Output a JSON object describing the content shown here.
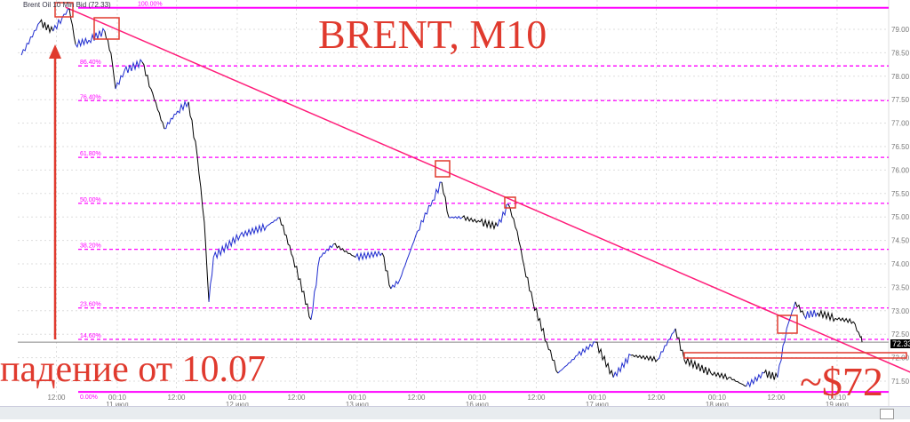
{
  "header": "Brent Oil 10 Min Bid (72.33)",
  "annotations": {
    "title": "BRENT, M10",
    "fall": "падение от 10.07",
    "target": "~$72"
  },
  "colors": {
    "price_up": "#1f2ccf",
    "price_down": "#000000",
    "fib": "#ff00ff",
    "trend": "#ff1d7a",
    "annotation": "#e03a2e"
  },
  "chart_data": {
    "type": "line",
    "title": "Brent Oil 10 Min Bid (72.33)",
    "last_price": "72.33",
    "ylim": [
      71.27,
      79.51
    ],
    "y_ticks": [
      "79.00",
      "78.50",
      "78.00",
      "77.50",
      "77.00",
      "76.50",
      "76.00",
      "75.50",
      "75.00",
      "74.50",
      "74.00",
      "73.50",
      "73.00",
      "72.50",
      "72.00",
      "71.50"
    ],
    "x_ticks": [
      {
        "t": "10.07 12:00",
        "l1": "12:00",
        "l2": ""
      },
      {
        "t": "11.07 00:10",
        "l1": "00:10",
        "l2": "11 июл"
      },
      {
        "t": "11.07 12:00",
        "l1": "12:00",
        "l2": ""
      },
      {
        "t": "12.07 00:10",
        "l1": "00:10",
        "l2": "12 июл"
      },
      {
        "t": "12.07 12:00",
        "l1": "12:00",
        "l2": ""
      },
      {
        "t": "13.07 00:10",
        "l1": "00:10",
        "l2": "13 июл"
      },
      {
        "t": "13.07 12:00",
        "l1": "12:00",
        "l2": ""
      },
      {
        "t": "16.07 00:10",
        "l1": "00:10",
        "l2": "16 июл"
      },
      {
        "t": "16.07 12:00",
        "l1": "12:00",
        "l2": ""
      },
      {
        "t": "17.07 00:10",
        "l1": "00:10",
        "l2": "17 июл"
      },
      {
        "t": "17.07 12:00",
        "l1": "12:00",
        "l2": ""
      },
      {
        "t": "18.07 00:10",
        "l1": "00:10",
        "l2": "18 июл"
      },
      {
        "t": "18.07 12:00",
        "l1": "12:00",
        "l2": ""
      },
      {
        "t": "19.07 00:10",
        "l1": "00:10",
        "l2": "19 июл"
      }
    ],
    "fib_levels": [
      {
        "label": "100.00%",
        "price": 79.46
      },
      {
        "label": "86.40%",
        "price": 78.22
      },
      {
        "label": "76.40%",
        "price": 77.48
      },
      {
        "label": "61.80%",
        "price": 76.27
      },
      {
        "label": "50.00%",
        "price": 75.29
      },
      {
        "label": "38.20%",
        "price": 74.31
      },
      {
        "label": "23.60%",
        "price": 73.06
      },
      {
        "label": "14.60%",
        "price": 72.39
      },
      {
        "label": "0.00%",
        "price": 71.27
      }
    ],
    "trendline": [
      {
        "t": "10.07 13:50",
        "p": 79.47
      },
      {
        "t": "19.07 12:50",
        "p": 71.77
      }
    ],
    "series": [
      {
        "points": [
          [
            "10.07 05:00",
            78.45
          ],
          [
            "10.07 08:40",
            79.15
          ],
          [
            "10.07 11:20",
            78.96
          ],
          [
            "10.07 13:10",
            79.25
          ],
          [
            "10.07 14:35",
            79.44
          ],
          [
            "10.07 15:50",
            78.68
          ],
          [
            "10.07 18:30",
            78.77
          ],
          [
            "10.07 21:40",
            78.96
          ],
          [
            "10.07 22:55",
            78.49
          ],
          [
            "10.07 23:50",
            77.73
          ],
          [
            "11.07 01:35",
            78.11
          ],
          [
            "11.07 05:10",
            78.3
          ],
          [
            "11.07 06:55",
            77.73
          ],
          [
            "11.07 09:35",
            76.88
          ],
          [
            "11.07 12:15",
            77.26
          ],
          [
            "11.07 14:25",
            77.45
          ],
          [
            "11.07 16:10",
            76.31
          ],
          [
            "11.07 17:35",
            74.89
          ],
          [
            "11.07 18:30",
            73.19
          ],
          [
            "11.07 19:25",
            74.14
          ],
          [
            "12.07 00:45",
            74.61
          ],
          [
            "12.07 06:00",
            74.8
          ],
          [
            "12.07 08:40",
            74.99
          ],
          [
            "12.07 11:20",
            74.14
          ],
          [
            "12.07 14:55",
            72.81
          ],
          [
            "12.07 16:40",
            74.14
          ],
          [
            "12.07 19:25",
            74.42
          ],
          [
            "12.07 23:50",
            74.14
          ],
          [
            "13.07 05:10",
            74.23
          ],
          [
            "13.07 06:55",
            73.47
          ],
          [
            "13.07 08:40",
            73.66
          ],
          [
            "13.07 12:15",
            74.7
          ],
          [
            "13.07 15:15",
            75.36
          ],
          [
            "13.07 17:05",
            75.74
          ],
          [
            "13.07 18:30",
            74.99
          ],
          [
            "13.07 21:10",
            74.99
          ],
          [
            "16.07 00:45",
            74.89
          ],
          [
            "16.07 04:15",
            74.8
          ],
          [
            "16.07 06:25",
            75.27
          ],
          [
            "16.07 08:10",
            74.7
          ],
          [
            "16.07 09:35",
            73.94
          ],
          [
            "16.07 11:20",
            73.19
          ],
          [
            "16.07 14:05",
            72.33
          ],
          [
            "16.07 16:20",
            71.67
          ],
          [
            "16.07 20:15",
            72.05
          ],
          [
            "16.07 23:50",
            72.33
          ],
          [
            "17.07 03:25",
            71.58
          ],
          [
            "17.07 06:55",
            72.05
          ],
          [
            "17.07 12:15",
            71.96
          ],
          [
            "17.07 15:50",
            72.62
          ],
          [
            "17.07 17:35",
            71.96
          ],
          [
            "17.07 22:55",
            71.67
          ],
          [
            "18.07 02:30",
            71.58
          ],
          [
            "18.07 06:00",
            71.39
          ],
          [
            "18.07 09:35",
            71.67
          ],
          [
            "18.07 12:15",
            71.58
          ],
          [
            "18.07 14:05",
            72.62
          ],
          [
            "18.07 15:50",
            73.19
          ],
          [
            "18.07 17:35",
            72.9
          ],
          [
            "18.07 20:15",
            72.96
          ],
          [
            "18.07 23:50",
            72.84
          ],
          [
            "19.07 03:25",
            72.77
          ],
          [
            "19.07 04:50",
            72.43
          ],
          [
            "19.07 05:10",
            72.33
          ]
        ]
      }
    ],
    "grid": true
  }
}
